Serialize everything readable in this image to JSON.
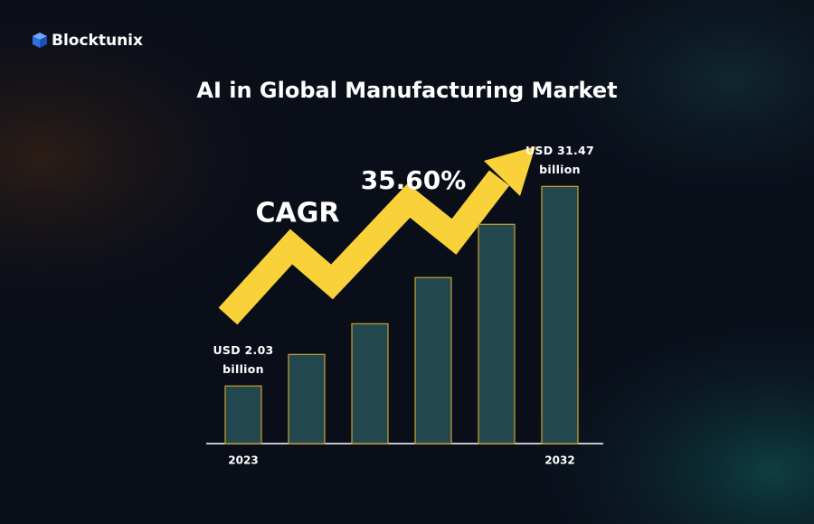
{
  "brand": "Blocktunix",
  "chart_data": {
    "type": "bar",
    "title": "AI in Global Manufacturing Market",
    "categories": [
      "2023",
      null,
      null,
      null,
      null,
      "2032"
    ],
    "values": [
      2.03,
      3.13,
      4.77,
      9.0,
      18.7,
      31.47
    ],
    "value_labels": [
      "USD 2.03 billion",
      null,
      null,
      null,
      null,
      "USD 31.47 billion"
    ],
    "color": "#23474f",
    "edge_color": "#c9a52c",
    "log_scale": true,
    "ylim": [
      0.92,
      40
    ],
    "annotations": [
      "CAGR",
      "35.60%"
    ],
    "arrow_color": "#f9d23a"
  }
}
